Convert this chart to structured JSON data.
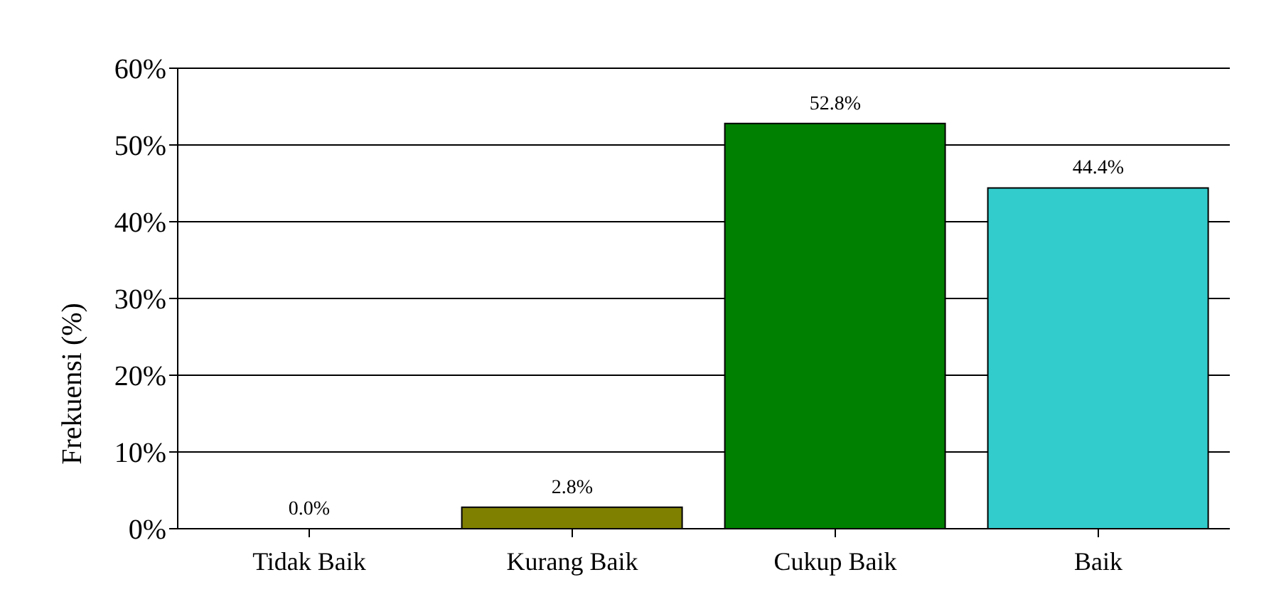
{
  "chart_data": {
    "type": "bar",
    "ylabel": "Frekuensi (%)",
    "categories": [
      "Tidak Baik",
      "Kurang Baik",
      "Cukup Baik",
      "Baik"
    ],
    "values": [
      0.0,
      2.8,
      52.8,
      44.4
    ],
    "colors": [
      "#808000",
      "#808000",
      "#008000",
      "#33cccc"
    ],
    "value_labels": [
      "0.0%",
      "2.8%",
      "52.8%",
      "44.4%"
    ],
    "ylim": [
      0,
      60
    ],
    "yticks": [
      {
        "value": 0,
        "label": "0%"
      },
      {
        "value": 10,
        "label": "10%"
      },
      {
        "value": 20,
        "label": "20%"
      },
      {
        "value": 30,
        "label": "30%"
      },
      {
        "value": 40,
        "label": "40%"
      },
      {
        "value": 50,
        "label": "50%"
      },
      {
        "value": 60,
        "label": "60%"
      }
    ],
    "grid": "y",
    "legend": false
  }
}
